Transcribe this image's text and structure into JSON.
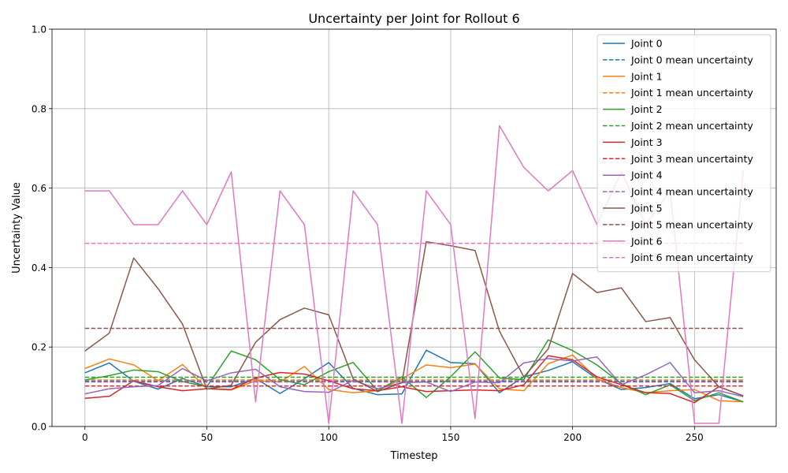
{
  "chart_data": {
    "type": "line",
    "title": "Uncertainty per Joint for Rollout 6",
    "xlabel": "Timestep",
    "ylabel": "Uncertainty Value",
    "xlim": [
      -13.5,
      283.5
    ],
    "ylim": [
      0,
      1.0
    ],
    "xticks": [
      0,
      50,
      100,
      150,
      200,
      250
    ],
    "xtick_labels": [
      "0",
      "50",
      "100",
      "150",
      "200",
      "250"
    ],
    "yticks": [
      0,
      0.2,
      0.4,
      0.6,
      0.8,
      1.0
    ],
    "ytick_labels": [
      "0.0",
      "0.2",
      "0.4",
      "0.6",
      "0.8",
      "1.0"
    ],
    "grid": true,
    "legend_position": "top-right",
    "x": [
      0,
      10,
      20,
      30,
      40,
      50,
      60,
      70,
      80,
      90,
      100,
      110,
      120,
      130,
      140,
      150,
      160,
      170,
      180,
      190,
      200,
      210,
      220,
      230,
      240,
      250,
      260,
      270
    ],
    "series": [
      {
        "name": "Joint 0",
        "color": "#1f77b4",
        "values": [
          0.135,
          0.16,
          0.114,
          0.094,
          0.121,
          0.1,
          0.1,
          0.121,
          0.083,
          0.12,
          0.161,
          0.096,
          0.08,
          0.082,
          0.192,
          0.161,
          0.158,
          0.085,
          0.125,
          0.141,
          0.163,
          0.12,
          0.093,
          0.098,
          0.108,
          0.07,
          0.08,
          0.062
        ],
        "mean_name": "Joint 0 mean uncertainty",
        "mean": 0.114
      },
      {
        "name": "Joint 1",
        "color": "#ff7f0e",
        "values": [
          0.146,
          0.17,
          0.155,
          0.115,
          0.156,
          0.095,
          0.092,
          0.115,
          0.112,
          0.151,
          0.093,
          0.085,
          0.09,
          0.12,
          0.155,
          0.148,
          0.157,
          0.095,
          0.09,
          0.158,
          0.18,
          0.12,
          0.098,
          0.085,
          0.09,
          0.093,
          0.065,
          0.062
        ],
        "mean_name": "Joint 1 mean uncertainty",
        "mean": 0.117
      },
      {
        "name": "Joint 2",
        "color": "#2ca02c",
        "values": [
          0.117,
          0.128,
          0.142,
          0.138,
          0.113,
          0.1,
          0.19,
          0.168,
          0.118,
          0.105,
          0.138,
          0.161,
          0.09,
          0.125,
          0.073,
          0.125,
          0.188,
          0.122,
          0.118,
          0.218,
          0.191,
          0.155,
          0.108,
          0.08,
          0.105,
          0.065,
          0.085,
          0.062
        ],
        "mean_name": "Joint 2 mean uncertainty",
        "mean": 0.124
      },
      {
        "name": "Joint 3",
        "color": "#d62728",
        "values": [
          0.071,
          0.076,
          0.115,
          0.1,
          0.09,
          0.095,
          0.093,
          0.122,
          0.136,
          0.132,
          0.115,
          0.095,
          0.09,
          0.1,
          0.088,
          0.09,
          0.092,
          0.09,
          0.105,
          0.178,
          0.168,
          0.125,
          0.105,
          0.085,
          0.083,
          0.06,
          0.1,
          0.077
        ],
        "mean_name": "Joint 3 mean uncertainty",
        "mean": 0.102
      },
      {
        "name": "Joint 4",
        "color": "#9467bd",
        "values": [
          0.082,
          0.095,
          0.1,
          0.103,
          0.146,
          0.115,
          0.135,
          0.144,
          0.1,
          0.088,
          0.086,
          0.116,
          0.095,
          0.11,
          0.112,
          0.088,
          0.112,
          0.11,
          0.16,
          0.171,
          0.165,
          0.175,
          0.105,
          0.13,
          0.161,
          0.085,
          0.09,
          0.075
        ],
        "mean_name": "Joint 4 mean uncertainty",
        "mean": 0.112
      },
      {
        "name": "Joint 5",
        "color": "#8c564b",
        "values": [
          0.19,
          0.235,
          0.424,
          0.347,
          0.258,
          0.094,
          0.104,
          0.212,
          0.269,
          0.298,
          0.281,
          0.12,
          0.088,
          0.11,
          0.465,
          0.455,
          0.443,
          0.24,
          0.125,
          0.195,
          0.385,
          0.337,
          0.349,
          0.264,
          0.274,
          0.168,
          0.1,
          0.077
        ],
        "mean_name": "Joint 5 mean uncertainty",
        "mean": 0.247
      },
      {
        "name": "Joint 6",
        "color": "#e377c2",
        "values": [
          0.593,
          0.593,
          0.508,
          0.508,
          0.593,
          0.508,
          0.641,
          0.062,
          0.593,
          0.508,
          0.008,
          0.593,
          0.508,
          0.008,
          0.593,
          0.508,
          0.02,
          0.757,
          0.652,
          0.593,
          0.644,
          0.508,
          0.641,
          0.508,
          0.593,
          0.008,
          0.008,
          0.644
        ],
        "mean_name": "Joint 6 mean uncertainty",
        "mean": 0.461
      }
    ]
  }
}
